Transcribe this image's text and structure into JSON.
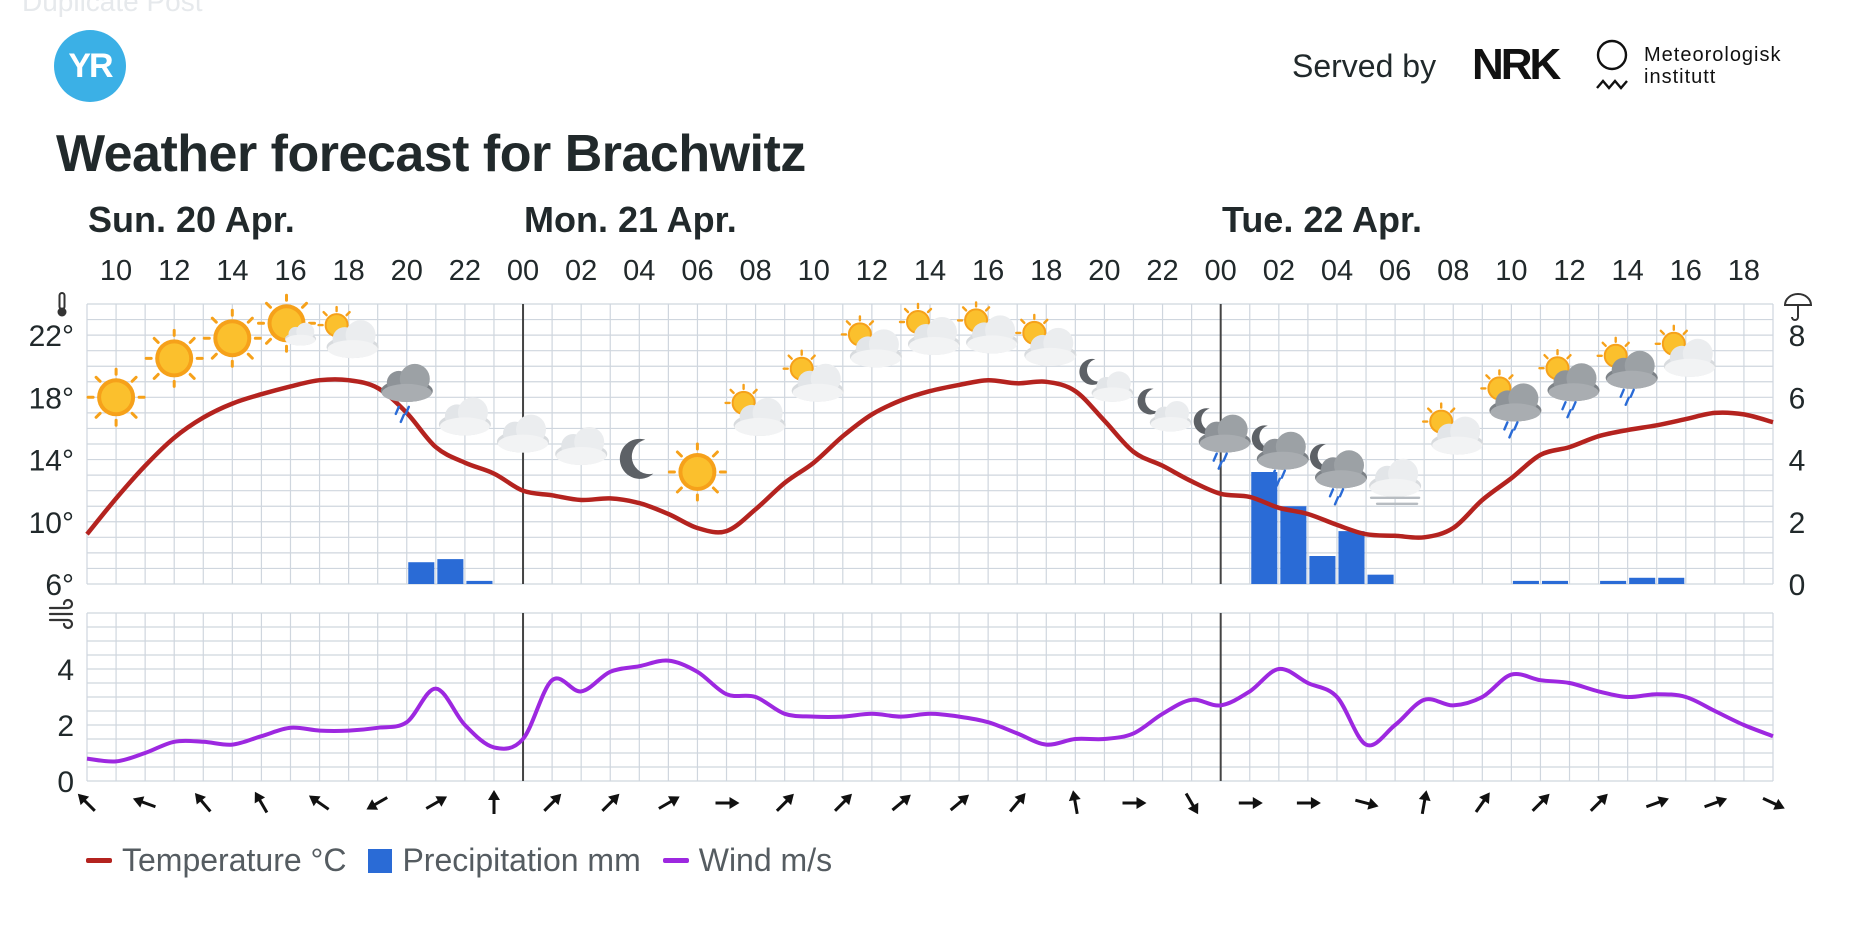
{
  "ghost_text": "Duplicate Post",
  "header": {
    "logo_text": "YR",
    "served_by": "Served by",
    "nrk_logo": "NRK",
    "met_logo_line1": "Meteorologisk",
    "met_logo_line2": "institutt"
  },
  "title": "Weather forecast for Brachwitz",
  "legend": [
    {
      "label": "Temperature °C",
      "color": "#b4231f",
      "kind": "line"
    },
    {
      "label": "Precipitation mm",
      "color": "#2a6bd6",
      "kind": "box"
    },
    {
      "label": "Wind m/s",
      "color": "#9d28e0",
      "kind": "line"
    }
  ],
  "chart_data": {
    "type": "line",
    "colors": {
      "temperature": "#b4231f",
      "precipitation": "#2a6bd6",
      "wind": "#9d28e0",
      "grid": "#cfd6de",
      "daydivider": "#444444"
    },
    "days": [
      {
        "label": "Sun. 20 Apr.",
        "hour": 9
      },
      {
        "label": "Mon. 21 Apr.",
        "hour": 24
      },
      {
        "label": "Tue. 22 Apr.",
        "hour": 48
      }
    ],
    "x_range_hours": [
      9,
      67
    ],
    "hour_ticks": [
      {
        "h": 10,
        "label": "10"
      },
      {
        "h": 12,
        "label": "12"
      },
      {
        "h": 14,
        "label": "14"
      },
      {
        "h": 16,
        "label": "16"
      },
      {
        "h": 18,
        "label": "18"
      },
      {
        "h": 20,
        "label": "20"
      },
      {
        "h": 22,
        "label": "22"
      },
      {
        "h": 24,
        "label": "00"
      },
      {
        "h": 26,
        "label": "02"
      },
      {
        "h": 28,
        "label": "04"
      },
      {
        "h": 30,
        "label": "06"
      },
      {
        "h": 32,
        "label": "08"
      },
      {
        "h": 34,
        "label": "10"
      },
      {
        "h": 36,
        "label": "12"
      },
      {
        "h": 38,
        "label": "14"
      },
      {
        "h": 40,
        "label": "16"
      },
      {
        "h": 42,
        "label": "18"
      },
      {
        "h": 44,
        "label": "20"
      },
      {
        "h": 46,
        "label": "22"
      },
      {
        "h": 48,
        "label": "00"
      },
      {
        "h": 50,
        "label": "02"
      },
      {
        "h": 52,
        "label": "04"
      },
      {
        "h": 54,
        "label": "06"
      },
      {
        "h": 56,
        "label": "08"
      },
      {
        "h": 58,
        "label": "10"
      },
      {
        "h": 60,
        "label": "12"
      },
      {
        "h": 62,
        "label": "14"
      },
      {
        "h": 64,
        "label": "16"
      },
      {
        "h": 66,
        "label": "18"
      }
    ],
    "temperature": {
      "name": "Temperature °C",
      "ylim": [
        6,
        24
      ],
      "y_ticks": [
        {
          "v": 6,
          "label": "6°"
        },
        {
          "v": 10,
          "label": "10°"
        },
        {
          "v": 14,
          "label": "14°"
        },
        {
          "v": 18,
          "label": "18°"
        },
        {
          "v": 22,
          "label": "22°"
        }
      ],
      "values": [
        [
          9,
          9.2
        ],
        [
          10,
          11.5
        ],
        [
          11,
          13.6
        ],
        [
          12,
          15.4
        ],
        [
          13,
          16.7
        ],
        [
          14,
          17.6
        ],
        [
          15,
          18.2
        ],
        [
          16,
          18.7
        ],
        [
          17,
          19.1
        ],
        [
          18,
          19.1
        ],
        [
          19,
          18.6
        ],
        [
          20,
          17.0
        ],
        [
          21,
          14.8
        ],
        [
          22,
          13.8
        ],
        [
          23,
          13.1
        ],
        [
          24,
          12.0
        ],
        [
          25,
          11.7
        ],
        [
          26,
          11.4
        ],
        [
          27,
          11.5
        ],
        [
          28,
          11.2
        ],
        [
          29,
          10.5
        ],
        [
          30,
          9.6
        ],
        [
          31,
          9.4
        ],
        [
          32,
          10.8
        ],
        [
          33,
          12.5
        ],
        [
          34,
          13.8
        ],
        [
          35,
          15.5
        ],
        [
          36,
          16.9
        ],
        [
          37,
          17.8
        ],
        [
          38,
          18.4
        ],
        [
          39,
          18.8
        ],
        [
          40,
          19.1
        ],
        [
          41,
          18.9
        ],
        [
          42,
          19.0
        ],
        [
          43,
          18.4
        ],
        [
          44,
          16.5
        ],
        [
          45,
          14.5
        ],
        [
          46,
          13.6
        ],
        [
          47,
          12.6
        ],
        [
          48,
          11.8
        ],
        [
          49,
          11.6
        ],
        [
          50,
          10.9
        ],
        [
          51,
          10.5
        ],
        [
          52,
          9.8
        ],
        [
          53,
          9.2
        ],
        [
          54,
          9.1
        ],
        [
          55,
          9.0
        ],
        [
          56,
          9.6
        ],
        [
          57,
          11.4
        ],
        [
          58,
          12.8
        ],
        [
          59,
          14.3
        ],
        [
          60,
          14.8
        ],
        [
          61,
          15.5
        ],
        [
          62,
          15.9
        ],
        [
          63,
          16.2
        ],
        [
          64,
          16.6
        ],
        [
          65,
          17.0
        ],
        [
          66,
          16.9
        ],
        [
          67,
          16.4
        ]
      ]
    },
    "precipitation": {
      "name": "Precipitation mm",
      "ylim": [
        0,
        9
      ],
      "y_ticks": [
        {
          "v": 0,
          "label": "0"
        },
        {
          "v": 2,
          "label": "2"
        },
        {
          "v": 4,
          "label": "4"
        },
        {
          "v": 6,
          "label": "6"
        },
        {
          "v": 8,
          "label": "8"
        }
      ],
      "values": [
        [
          20,
          0.7
        ],
        [
          21,
          0.8
        ],
        [
          22,
          0.1
        ],
        [
          49,
          3.6
        ],
        [
          50,
          2.5
        ],
        [
          51,
          0.9
        ],
        [
          52,
          1.7
        ],
        [
          53,
          0.3
        ],
        [
          58,
          0.1
        ],
        [
          59,
          0.1
        ],
        [
          61,
          0.1
        ],
        [
          62,
          0.2
        ],
        [
          63,
          0.2
        ]
      ]
    },
    "wind": {
      "name": "Wind m/s",
      "ylim": [
        0,
        6
      ],
      "y_ticks": [
        {
          "v": 0,
          "label": "0"
        },
        {
          "v": 2,
          "label": "2"
        },
        {
          "v": 4,
          "label": "4"
        }
      ],
      "values": [
        [
          9,
          0.8
        ],
        [
          10,
          0.7
        ],
        [
          11,
          1.0
        ],
        [
          12,
          1.4
        ],
        [
          13,
          1.4
        ],
        [
          14,
          1.3
        ],
        [
          15,
          1.6
        ],
        [
          16,
          1.9
        ],
        [
          17,
          1.8
        ],
        [
          18,
          1.8
        ],
        [
          19,
          1.9
        ],
        [
          20,
          2.1
        ],
        [
          21,
          3.3
        ],
        [
          22,
          2.0
        ],
        [
          23,
          1.2
        ],
        [
          24,
          1.5
        ],
        [
          25,
          3.6
        ],
        [
          26,
          3.2
        ],
        [
          27,
          3.9
        ],
        [
          28,
          4.1
        ],
        [
          29,
          4.3
        ],
        [
          30,
          3.9
        ],
        [
          31,
          3.1
        ],
        [
          32,
          3.0
        ],
        [
          33,
          2.4
        ],
        [
          34,
          2.3
        ],
        [
          35,
          2.3
        ],
        [
          36,
          2.4
        ],
        [
          37,
          2.3
        ],
        [
          38,
          2.4
        ],
        [
          39,
          2.3
        ],
        [
          40,
          2.1
        ],
        [
          41,
          1.7
        ],
        [
          42,
          1.3
        ],
        [
          43,
          1.5
        ],
        [
          44,
          1.5
        ],
        [
          45,
          1.7
        ],
        [
          46,
          2.4
        ],
        [
          47,
          2.9
        ],
        [
          48,
          2.7
        ],
        [
          49,
          3.2
        ],
        [
          50,
          4.0
        ],
        [
          51,
          3.5
        ],
        [
          52,
          3.0
        ],
        [
          53,
          1.3
        ],
        [
          54,
          2.0
        ],
        [
          55,
          2.9
        ],
        [
          56,
          2.7
        ],
        [
          57,
          3.0
        ],
        [
          58,
          3.8
        ],
        [
          59,
          3.6
        ],
        [
          60,
          3.5
        ],
        [
          61,
          3.2
        ],
        [
          62,
          3.0
        ],
        [
          63,
          3.1
        ],
        [
          64,
          3.0
        ],
        [
          65,
          2.5
        ],
        [
          66,
          2.0
        ],
        [
          67,
          1.6
        ]
      ]
    },
    "wind_directions": [
      {
        "h": 9,
        "rot": -45
      },
      {
        "h": 11,
        "rot": -70
      },
      {
        "h": 13,
        "rot": -40
      },
      {
        "h": 15,
        "rot": -30
      },
      {
        "h": 17,
        "rot": -55
      },
      {
        "h": 19,
        "rot": -120
      },
      {
        "h": 21,
        "rot": 60
      },
      {
        "h": 23,
        "rot": 0
      },
      {
        "h": 25,
        "rot": 45
      },
      {
        "h": 27,
        "rot": 45
      },
      {
        "h": 29,
        "rot": 60
      },
      {
        "h": 31,
        "rot": 90
      },
      {
        "h": 33,
        "rot": 45
      },
      {
        "h": 35,
        "rot": 45
      },
      {
        "h": 37,
        "rot": 50
      },
      {
        "h": 39,
        "rot": 50
      },
      {
        "h": 41,
        "rot": 40
      },
      {
        "h": 43,
        "rot": -10
      },
      {
        "h": 45,
        "rot": 90
      },
      {
        "h": 47,
        "rot": 150
      },
      {
        "h": 49,
        "rot": 90
      },
      {
        "h": 51,
        "rot": 90
      },
      {
        "h": 53,
        "rot": 105
      },
      {
        "h": 55,
        "rot": 10
      },
      {
        "h": 57,
        "rot": 35
      },
      {
        "h": 59,
        "rot": 45
      },
      {
        "h": 61,
        "rot": 45
      },
      {
        "h": 63,
        "rot": 70
      },
      {
        "h": 65,
        "rot": 70
      },
      {
        "h": 67,
        "rot": 115
      }
    ],
    "symbols": [
      {
        "h": 10,
        "t": 18.0,
        "icon": "clear-sky-day-icon"
      },
      {
        "h": 12,
        "t": 20.5,
        "icon": "clear-sky-day-icon"
      },
      {
        "h": 14,
        "t": 21.8,
        "icon": "clear-sky-day-icon"
      },
      {
        "h": 16,
        "t": 22.5,
        "icon": "fair-day-icon"
      },
      {
        "h": 18,
        "t": 22.0,
        "icon": "partly-cloudy-day-icon"
      },
      {
        "h": 20,
        "t": 18.8,
        "icon": "rain-showers-icon"
      },
      {
        "h": 22,
        "t": 16.9,
        "icon": "cloudy-icon"
      },
      {
        "h": 24,
        "t": 15.8,
        "icon": "cloudy-icon"
      },
      {
        "h": 26,
        "t": 15.0,
        "icon": "cloudy-icon"
      },
      {
        "h": 28,
        "t": 14.0,
        "icon": "clear-sky-night-icon"
      },
      {
        "h": 30,
        "t": 13.2,
        "icon": "clear-sky-day-icon"
      },
      {
        "h": 32,
        "t": 17.0,
        "icon": "partly-cloudy-day-icon"
      },
      {
        "h": 34,
        "t": 19.2,
        "icon": "partly-cloudy-day-icon"
      },
      {
        "h": 36,
        "t": 21.4,
        "icon": "partly-cloudy-day-icon"
      },
      {
        "h": 38,
        "t": 22.2,
        "icon": "partly-cloudy-day-icon"
      },
      {
        "h": 40,
        "t": 22.3,
        "icon": "partly-cloudy-day-icon"
      },
      {
        "h": 42,
        "t": 21.5,
        "icon": "partly-cloudy-day-icon"
      },
      {
        "h": 44,
        "t": 19.1,
        "icon": "fair-night-icon"
      },
      {
        "h": 46,
        "t": 17.2,
        "icon": "fair-night-icon"
      },
      {
        "h": 48,
        "t": 15.8,
        "icon": "rain-showers-night-icon"
      },
      {
        "h": 50,
        "t": 14.7,
        "icon": "rain-showers-night-icon"
      },
      {
        "h": 52,
        "t": 13.5,
        "icon": "rain-showers-night-icon"
      },
      {
        "h": 54,
        "t": 12.7,
        "icon": "fog-icon"
      },
      {
        "h": 56,
        "t": 15.8,
        "icon": "partly-cloudy-day-icon"
      },
      {
        "h": 58,
        "t": 17.8,
        "icon": "rain-showers-day-icon"
      },
      {
        "h": 60,
        "t": 19.1,
        "icon": "rain-showers-day-icon"
      },
      {
        "h": 62,
        "t": 19.9,
        "icon": "rain-showers-day-icon"
      },
      {
        "h": 64,
        "t": 20.8,
        "icon": "partly-cloudy-day-icon"
      }
    ]
  }
}
